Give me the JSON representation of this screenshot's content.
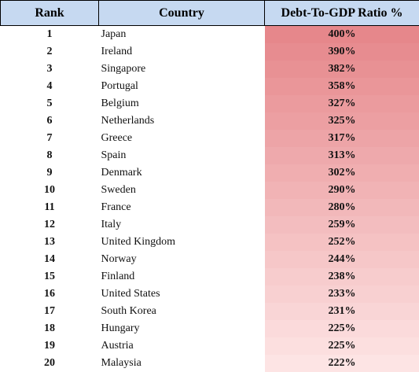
{
  "table": {
    "header": [
      "Rank",
      "Country",
      "Debt-To-GDP Ratio %"
    ],
    "rows": [
      [
        1,
        "Japan",
        "400%"
      ],
      [
        2,
        "Ireland",
        "390%"
      ],
      [
        3,
        "Singapore",
        "382%"
      ],
      [
        4,
        "Portugal",
        "358%"
      ],
      [
        5,
        "Belgium",
        "327%"
      ],
      [
        6,
        "Netherlands",
        "325%"
      ],
      [
        7,
        "Greece",
        "317%"
      ],
      [
        8,
        "Spain",
        "313%"
      ],
      [
        9,
        "Denmark",
        "302%"
      ],
      [
        10,
        "Sweden",
        "290%"
      ],
      [
        11,
        "France",
        "280%"
      ],
      [
        12,
        "Italy",
        "259%"
      ],
      [
        13,
        "United Kingdom",
        "252%"
      ],
      [
        14,
        "Norway",
        "244%"
      ],
      [
        15,
        "Finland",
        "238%"
      ],
      [
        16,
        "United States",
        "233%"
      ],
      [
        17,
        "South Korea",
        "231%"
      ],
      [
        18,
        "Hungary",
        "225%"
      ],
      [
        19,
        "Austria",
        "225%"
      ],
      [
        20,
        "Malaysia",
        "222%"
      ]
    ]
  }
}
